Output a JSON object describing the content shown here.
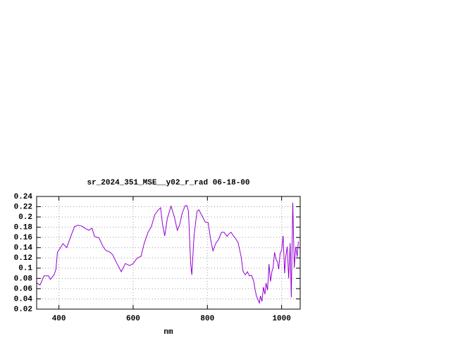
{
  "chart_data": {
    "type": "line",
    "title": "sr_2024_351_MSE__y02_r_rad 06-18-00",
    "xlabel": "nm",
    "color": "#9400d3",
    "grid": true,
    "xlim": [
      340,
      1050
    ],
    "xticks": [
      400,
      600,
      800,
      1000
    ],
    "ylim": [
      0.02,
      0.24
    ],
    "yticks": [
      0.02,
      0.04,
      0.06,
      0.08,
      0.1,
      0.12,
      0.14,
      0.16,
      0.18,
      0.2,
      0.22,
      0.24
    ],
    "x": [
      341,
      349,
      360,
      372,
      377,
      387,
      392,
      396,
      406,
      411,
      421,
      432,
      442,
      451,
      462,
      472,
      481,
      489,
      496,
      508,
      519,
      526,
      538,
      545,
      555,
      568,
      579,
      591,
      600,
      611,
      621,
      630,
      640,
      649,
      658,
      668,
      674,
      679,
      685,
      692,
      702,
      711,
      719,
      725,
      732,
      740,
      745,
      749,
      755,
      758,
      764,
      772,
      777,
      785,
      794,
      802,
      809,
      815,
      823,
      830,
      838,
      845,
      853,
      858,
      864,
      870,
      875,
      883,
      891,
      896,
      902,
      908,
      913,
      919,
      925,
      928,
      932,
      936,
      940,
      943,
      947,
      951,
      955,
      958,
      962,
      966,
      970,
      974,
      977,
      981,
      985,
      989,
      992,
      996,
      1000,
      1004,
      1008,
      1011,
      1015,
      1019,
      1023,
      1026,
      1030,
      1034,
      1038,
      1042,
      1045
    ],
    "values": [
      0.071,
      0.067,
      0.085,
      0.085,
      0.078,
      0.087,
      0.098,
      0.131,
      0.142,
      0.148,
      0.14,
      0.162,
      0.181,
      0.184,
      0.182,
      0.177,
      0.174,
      0.178,
      0.162,
      0.159,
      0.142,
      0.135,
      0.131,
      0.126,
      0.111,
      0.093,
      0.109,
      0.105,
      0.109,
      0.12,
      0.123,
      0.149,
      0.17,
      0.181,
      0.204,
      0.214,
      0.218,
      0.186,
      0.163,
      0.197,
      0.221,
      0.2,
      0.174,
      0.184,
      0.207,
      0.222,
      0.222,
      0.211,
      0.108,
      0.087,
      0.163,
      0.211,
      0.214,
      0.203,
      0.19,
      0.189,
      0.155,
      0.134,
      0.149,
      0.156,
      0.17,
      0.17,
      0.162,
      0.167,
      0.17,
      0.163,
      0.159,
      0.149,
      0.122,
      0.094,
      0.087,
      0.093,
      0.085,
      0.086,
      0.074,
      0.06,
      0.046,
      0.039,
      0.032,
      0.046,
      0.035,
      0.063,
      0.049,
      0.071,
      0.057,
      0.108,
      0.074,
      0.094,
      0.101,
      0.131,
      0.117,
      0.112,
      0.098,
      0.129,
      0.135,
      0.163,
      0.09,
      0.122,
      0.142,
      0.08,
      0.149,
      0.043,
      0.228,
      0.101,
      0.142,
      0.122,
      0.152
    ]
  }
}
